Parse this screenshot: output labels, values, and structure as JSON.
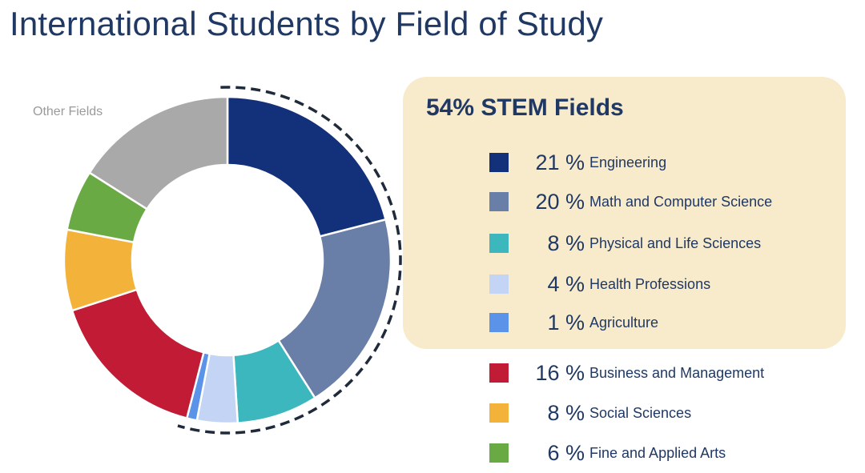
{
  "title": "International Students by Field of Study",
  "chart_data": {
    "type": "pie",
    "variant": "donut",
    "title": "International Students by Field of Study",
    "unit": "%",
    "other_label": "Other Fields",
    "highlight": {
      "label": "54% STEM Fields",
      "value": 54,
      "members": [
        "Engineering",
        "Math and Computer Science",
        "Physical and Life Sciences",
        "Health Professions",
        "Agriculture"
      ]
    },
    "slices": [
      {
        "label": "Engineering",
        "value": 21,
        "pct_text": "21 %",
        "color": "#13307a"
      },
      {
        "label": "Math and Computer Science",
        "value": 20,
        "pct_text": "20 %",
        "color": "#6a7fa8"
      },
      {
        "label": "Physical and Life Sciences",
        "value": 8,
        "pct_text": "8 %",
        "color": "#3bb7bd"
      },
      {
        "label": "Health Professions",
        "value": 4,
        "pct_text": "4 %",
        "color": "#c3d4f5"
      },
      {
        "label": "Agriculture",
        "value": 1,
        "pct_text": "1 %",
        "color": "#5b93e8"
      },
      {
        "label": "Business and Management",
        "value": 16,
        "pct_text": "16 %",
        "color": "#c21b36"
      },
      {
        "label": "Social Sciences",
        "value": 8,
        "pct_text": "8 %",
        "color": "#f3b23a"
      },
      {
        "label": "Fine and Applied Arts",
        "value": 6,
        "pct_text": "6 %",
        "color": "#6aaa45"
      },
      {
        "label": "Other Fields",
        "value": 16,
        "color": "#a9a9a9"
      }
    ]
  }
}
